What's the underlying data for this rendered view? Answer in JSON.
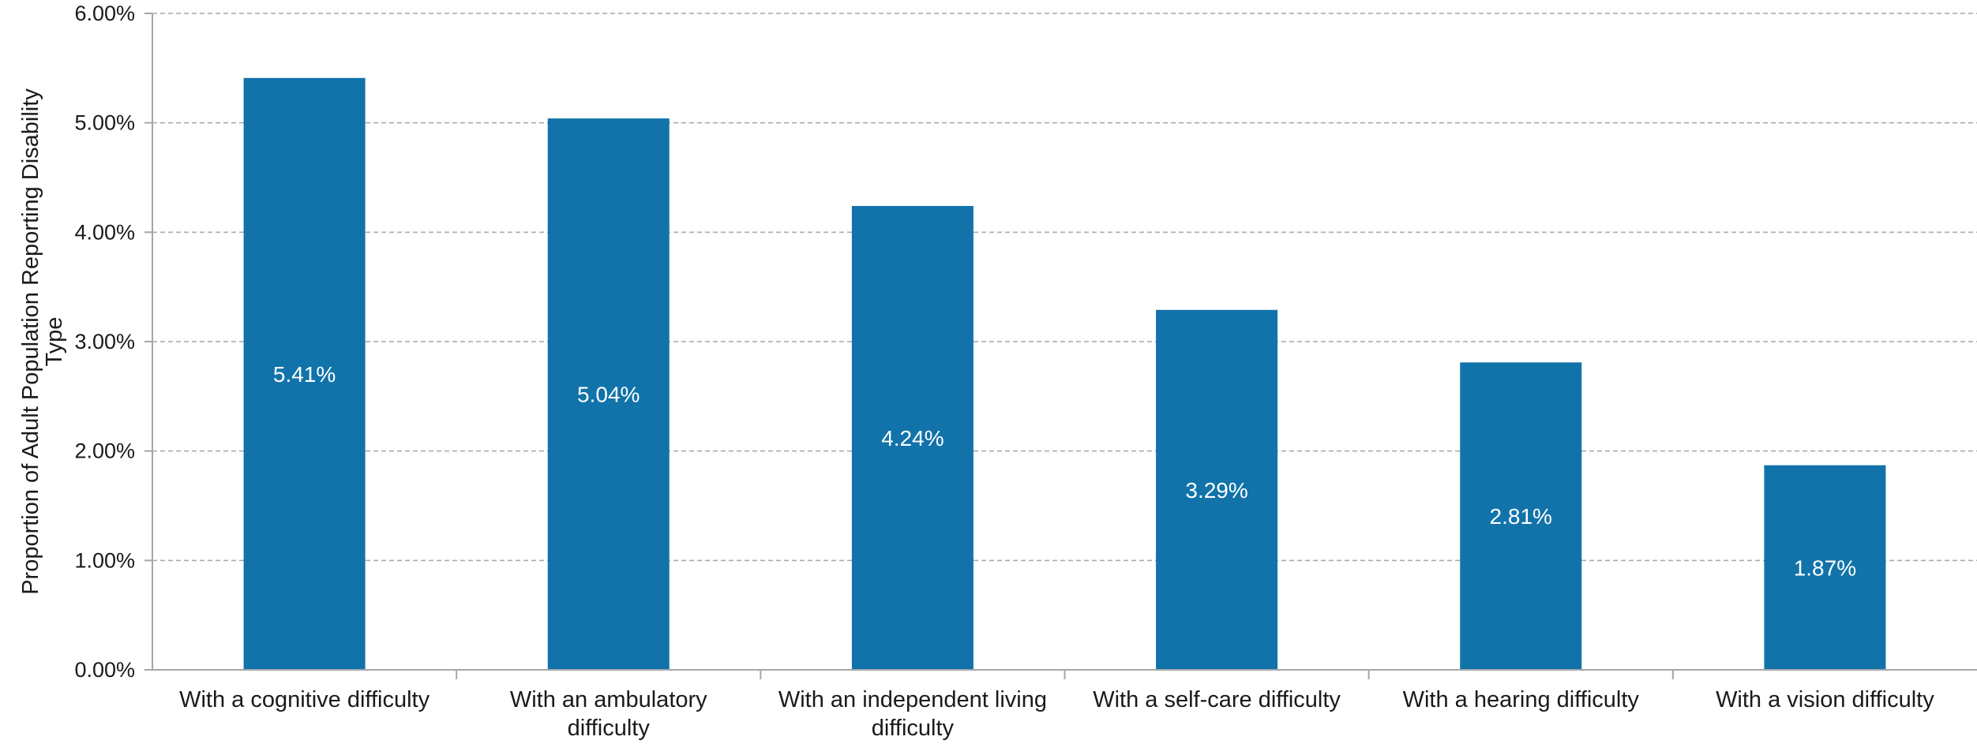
{
  "chart_data": {
    "type": "bar",
    "categories": [
      "With a cognitive difficulty",
      "With an ambulatory difficulty",
      "With an independent living difficulty",
      "With a self-care difficulty",
      "With a hearing difficulty",
      "With a vision difficulty"
    ],
    "category_lines": [
      [
        "With a cognitive difficulty"
      ],
      [
        "With an ambulatory",
        "difficulty"
      ],
      [
        "With an independent living",
        "difficulty"
      ],
      [
        "With a self-care difficulty"
      ],
      [
        "With a hearing difficulty"
      ],
      [
        "With a vision difficulty"
      ]
    ],
    "values": [
      5.41,
      5.04,
      4.24,
      3.29,
      2.81,
      1.87
    ],
    "data_labels": [
      "5.41%",
      "5.04%",
      "4.24%",
      "3.29%",
      "2.81%",
      "1.87%"
    ],
    "ylabel_lines": [
      "Proportion of Adult Population Reporting Disability",
      "Type"
    ],
    "ylabel": "Proportion of Adult Population Reporting Disability Type",
    "xlabel": "",
    "title": "",
    "ylim": [
      0,
      6
    ],
    "yticks": [
      0,
      1,
      2,
      3,
      4,
      5,
      6
    ],
    "ytick_labels": [
      "0.00%",
      "1.00%",
      "2.00%",
      "3.00%",
      "4.00%",
      "5.00%",
      "6.00%"
    ],
    "grid": true,
    "bar_color": "#1173aa",
    "data_label_color": "#ffffff"
  }
}
